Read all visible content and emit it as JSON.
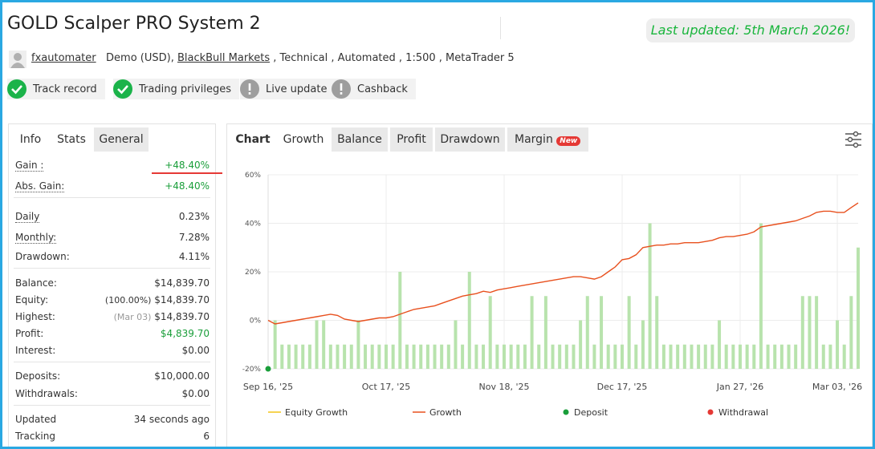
{
  "header": {
    "title": "GOLD Scalper PRO System 2",
    "updated": "Last updated: 5th March 2026!",
    "user": "fxautomater",
    "account_type": "Demo (USD),",
    "broker": "BlackBull Markets",
    "details": ", Technical , Automated , 1:500 , MetaTrader 5"
  },
  "badges": [
    {
      "label": "Track record",
      "ok": true
    },
    {
      "label": "Trading privileges",
      "ok": true
    },
    {
      "label": "Live update",
      "ok": false
    },
    {
      "label": "Cashback",
      "ok": false
    }
  ],
  "left_tabs": [
    "Info",
    "Stats",
    "General"
  ],
  "stats": [
    [
      {
        "label": "Gain :",
        "value": "+48.40%",
        "color": "#1a9e3a",
        "dotted": true
      },
      {
        "label": "Abs. Gain:",
        "value": "+48.40%",
        "color": "#1a9e3a",
        "dotted": true
      }
    ],
    [
      {
        "label": "Daily",
        "value": "0.23%",
        "dotted": true
      },
      {
        "label": "Monthly:",
        "value": "7.28%",
        "dotted": true
      },
      {
        "label": "Drawdown:",
        "value": "4.11%"
      }
    ],
    [
      {
        "label": "Balance:",
        "value": "$14,839.70"
      },
      {
        "label": "Equity:",
        "note": "(100.00%)",
        "value": "$14,839.70"
      },
      {
        "label": "Highest:",
        "note": "(Mar 03)",
        "value": "$14,839.70"
      },
      {
        "label": "Profit:",
        "value": "$4,839.70",
        "color": "#1a9e3a"
      },
      {
        "label": "Interest:",
        "value": "$0.00"
      }
    ],
    [
      {
        "label": "Deposits:",
        "value": "$10,000.00"
      },
      {
        "label": "Withdrawals:",
        "value": "$0.00"
      }
    ],
    [
      {
        "label": "Updated",
        "value": "34 seconds ago"
      },
      {
        "label": "Tracking",
        "value": "6"
      }
    ]
  ],
  "chart_tabs": [
    "Chart",
    "Growth",
    "Balance",
    "Profit",
    "Drawdown",
    "Margin"
  ],
  "new_badge": "New",
  "chart_data": {
    "type": "bar-line",
    "ylim": [
      -20,
      60
    ],
    "yticks": [
      {
        "value": -20,
        "label": "-20%"
      },
      {
        "value": 0,
        "label": "0%"
      },
      {
        "value": 20,
        "label": "20%"
      },
      {
        "value": 40,
        "label": "40%"
      },
      {
        "value": 60,
        "label": "60%"
      }
    ],
    "grid": true,
    "categories": [
      "Sep 16, '25",
      null,
      null,
      null,
      null,
      null,
      null,
      null,
      null,
      null,
      null,
      null,
      null,
      null,
      null,
      null,
      null,
      "Oct 17, '25",
      null,
      null,
      null,
      null,
      null,
      null,
      null,
      null,
      null,
      null,
      null,
      null,
      null,
      null,
      null,
      null,
      "Nov 18, '25",
      null,
      null,
      null,
      null,
      null,
      null,
      null,
      null,
      null,
      null,
      null,
      null,
      null,
      null,
      null,
      null,
      "Dec 17, '25",
      null,
      null,
      null,
      null,
      null,
      null,
      null,
      null,
      null,
      null,
      null,
      null,
      null,
      null,
      null,
      null,
      "Jan 27, '26",
      null,
      null,
      null,
      null,
      null,
      null,
      null,
      null,
      null,
      null,
      null,
      null,
      null,
      "Mar 03, '26",
      null,
      null,
      null
    ],
    "bars": {
      "color": "#b8e3ad",
      "values": [
        null,
        0,
        -10,
        -10,
        -10,
        -10,
        -10,
        0,
        0,
        -10,
        -10,
        -10,
        -10,
        0,
        -10,
        -10,
        -10,
        -10,
        -10,
        20,
        -10,
        -10,
        -10,
        -10,
        -10,
        -10,
        -10,
        0,
        -10,
        20,
        -10,
        -10,
        10,
        -10,
        -10,
        -10,
        -10,
        -10,
        10,
        -10,
        10,
        -10,
        -10,
        -10,
        -10,
        0,
        10,
        -10,
        10,
        -10,
        -10,
        -10,
        10,
        -10,
        0,
        40,
        10,
        -10,
        -10,
        -10,
        -10,
        -10,
        -10,
        -10,
        -10,
        0,
        -10,
        -10,
        -10,
        -10,
        -10,
        40,
        -10,
        -10,
        -10,
        -10,
        -10,
        10,
        10,
        10,
        -10,
        -10,
        0,
        -10,
        10,
        30
      ]
    },
    "line": {
      "color": "#e8501e",
      "values": [
        0,
        -1.5,
        -1,
        -0.5,
        0,
        0.5,
        1,
        1.5,
        2,
        2.5,
        2,
        0.5,
        0,
        -0.5,
        0,
        0.5,
        1,
        1,
        1.5,
        2.5,
        3.5,
        4.5,
        5,
        5.5,
        6,
        7,
        8,
        9,
        10,
        10.5,
        11,
        12,
        11.5,
        12.5,
        13,
        13.5,
        14,
        14.5,
        15,
        15.5,
        16,
        16.5,
        17,
        17.5,
        18,
        18,
        17.5,
        17,
        18,
        20,
        22,
        25,
        25.5,
        27,
        30,
        30.5,
        31,
        31,
        31.5,
        31.5,
        32,
        32,
        32,
        32.5,
        33,
        34,
        34.5,
        34.5,
        35,
        35.5,
        36.5,
        38.5,
        39,
        39.5,
        40,
        40.5,
        41,
        42,
        43,
        44.5,
        45,
        45,
        44.5,
        44.5,
        46.5,
        48.4
      ]
    },
    "legend": [
      {
        "name": "Equity Growth",
        "color": "#f2c418",
        "marker": "line"
      },
      {
        "name": "Growth",
        "color": "#e8501e",
        "marker": "line"
      },
      {
        "name": "Deposit",
        "color": "#1a9e3a",
        "marker": "dot"
      },
      {
        "name": "Withdrawal",
        "color": "#e53935",
        "marker": "dot"
      }
    ]
  }
}
